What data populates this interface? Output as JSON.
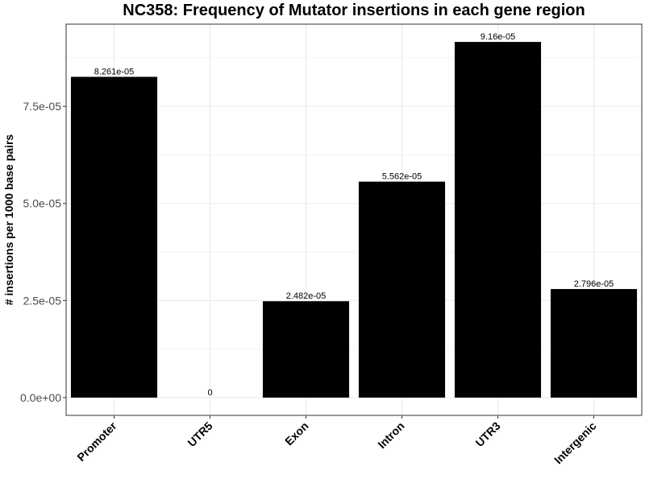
{
  "chart_data": {
    "type": "bar",
    "title": "NC358: Frequency of Mutator insertions in each gene region",
    "xlabel": "",
    "ylabel": "# insertions per 1000 base pairs",
    "categories": [
      "Promoter",
      "UTR5",
      "Exon",
      "Intron",
      "UTR3",
      "Intergenic"
    ],
    "values": [
      8.261e-05,
      0,
      2.482e-05,
      5.562e-05,
      9.16e-05,
      2.796e-05
    ],
    "data_labels": [
      "8.261e-05",
      "0",
      "2.482e-05",
      "5.562e-05",
      "9.16e-05",
      "2.796e-05"
    ],
    "yticks": [
      0,
      2.5e-05,
      5e-05,
      7.5e-05
    ],
    "ytick_labels": [
      "0.0e+00",
      "2.5e-05",
      "5.0e-05",
      "7.5e-05"
    ],
    "ylim": [
      -4.58e-06,
      9.618e-05
    ],
    "grid": true,
    "bar_color": "#000000",
    "grid_color": "#ebebeb",
    "panel_border_color": "#333333"
  }
}
